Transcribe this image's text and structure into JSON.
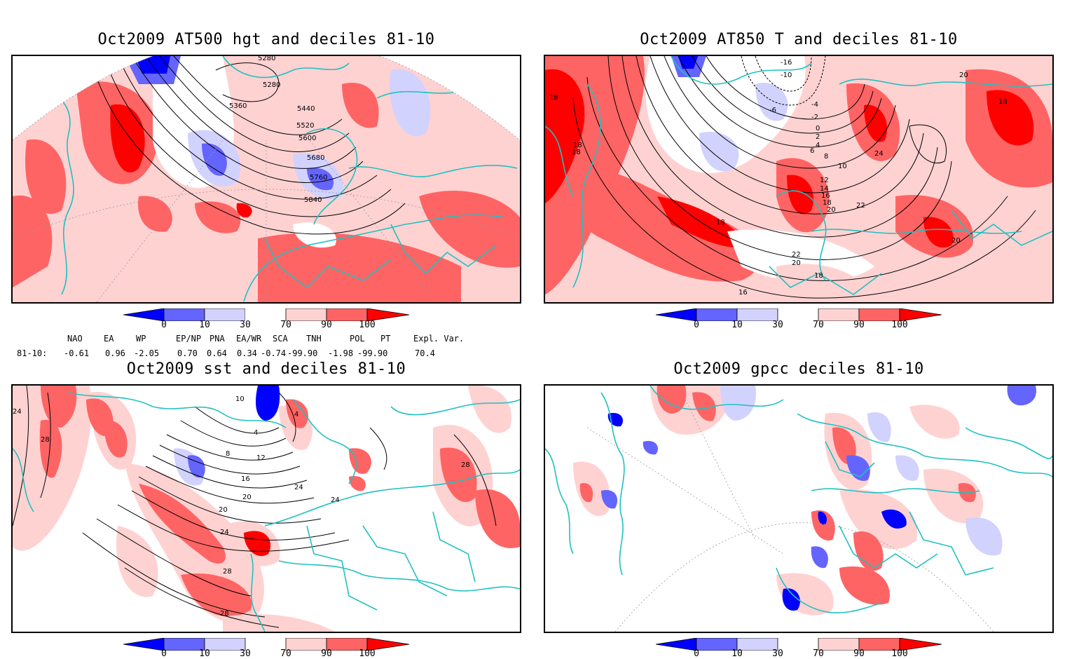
{
  "panels": {
    "hgt": {
      "title": "Oct2009 AT500 hgt and deciles 81-10",
      "contour_labels": [
        "5280",
        "5280",
        "5360",
        "5440",
        "5520",
        "5600",
        "5680",
        "5760",
        "5840"
      ]
    },
    "t850": {
      "title": "Oct2009 AT850 T and deciles 81-10",
      "contour_labels": [
        "-16",
        "-10",
        "-6",
        "-4",
        "-2",
        "0",
        "2",
        "4",
        "6",
        "8",
        "10",
        "12",
        "14",
        "16",
        "18",
        "20",
        "22",
        "24",
        "20",
        "18",
        "18",
        "18",
        "16",
        "18",
        "22",
        "20",
        "18",
        "20",
        "18"
      ]
    },
    "sst": {
      "title": "Oct2009 sst and deciles 81-10",
      "contour_labels": [
        "24",
        "28",
        "10",
        "4",
        "4",
        "8",
        "12",
        "16",
        "20",
        "24",
        "20",
        "24",
        "24",
        "28",
        "28",
        "28"
      ]
    },
    "gpcc": {
      "title": "Oct2009 gpcc deciles 81-10"
    }
  },
  "colorbar": {
    "tick_labels": [
      "0",
      "10",
      "30",
      "70",
      "90",
      "100"
    ],
    "colors": [
      "#0000ff",
      "#6464ff",
      "#d2d2ff",
      "#ffffff",
      "#ffd2d2",
      "#ff6464",
      "#ff0000"
    ]
  },
  "indices": {
    "headers": [
      "NAO",
      "EA",
      "WP",
      "EP/NP",
      "PNA",
      "EA/WR",
      "SCA",
      "TNH",
      "POL",
      "PT",
      "Expl. Var."
    ],
    "row_label": "81-10:",
    "values": [
      "-0.61",
      "0.96",
      "-2.05",
      "0.70",
      "0.64",
      "0.34",
      "-0.74",
      "-99.90",
      "-1.98",
      "-99.90",
      "70.4"
    ]
  }
}
